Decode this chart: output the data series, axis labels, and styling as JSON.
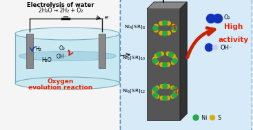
{
  "title_text": "Electrolysis of water",
  "eq_text": "2H₂O → 2H₂ + O₂",
  "electron_label": "e⁻",
  "h2_label": "H₂",
  "o2_label": "O₂",
  "oh_label": "OH⁻",
  "h2o_label": "H₂O",
  "oor_text1": "Oxygen",
  "oor_text2": "evolution reaction",
  "ni4_label": "Ni₄(SR)₈",
  "ni5_label": "Ni₅(SR)₁₀",
  "ni6_label": "Ni₆(SR)₁₂",
  "high1": "High",
  "high2": "activity",
  "o2_right": "O₂",
  "oh_right": "OH⁻",
  "bg_left": "#f5f5f5",
  "bg_right": "#d6eaf8",
  "tank_body_color": "#c8e8f2",
  "tank_rim_color": "#a0c8d8",
  "tank_edge": "#7aaabb",
  "electrode_color": "#888888",
  "wire_color": "#111111",
  "cluster_ni_color": "#22aa44",
  "cluster_s_color": "#ddaa00",
  "arrow_red": "#cc2200",
  "arrow_blue": "#2244bb",
  "text_red": "#ee2200",
  "o2_ball_color": "#1133bb",
  "oh_ball_color": "#1133bb",
  "oh_ball_white": "#ddddff",
  "pillar_color": "#555555",
  "pillar_top": "#888888",
  "pillar_side": "#333333",
  "dashed_border": "#5588bb"
}
